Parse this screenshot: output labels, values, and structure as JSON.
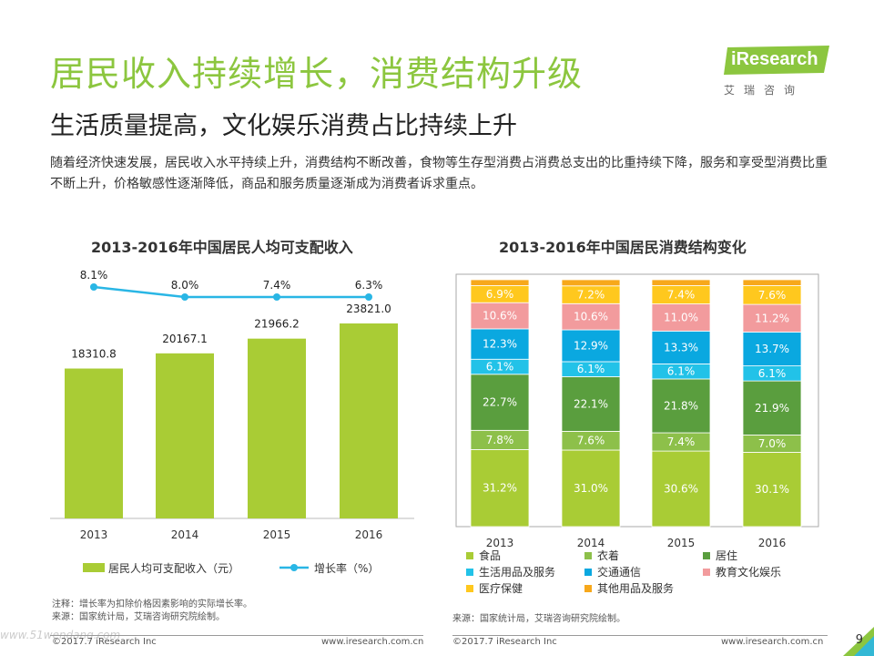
{
  "header": {
    "title": "居民收入持续增长，消费结构升级",
    "subtitle": "生活质量提高，文化娱乐消费占比持续上升",
    "description": "随着经济快速发展，居民收入水平持续上升，消费结构不断改善，食物等生存型消费占消费总支出的比重持续下降，服务和享受型消费比重不断上升，价格敏感性逐渐降低，商品和服务质量逐渐成为消费者诉求重点。"
  },
  "logo": {
    "brand_i": "i",
    "brand_rest": "Research",
    "cn": "艾瑞咨询"
  },
  "colors": {
    "accent_green": "#8cc63f",
    "bar_green": "#a9cc35",
    "line_blue": "#29b6e5"
  },
  "chart_data": [
    {
      "type": "bar",
      "title": "2013-2016年中国居民人均可支配收入",
      "categories": [
        "2013",
        "2014",
        "2015",
        "2016"
      ],
      "series": [
        {
          "name": "居民人均可支配收入（元）",
          "type": "bar",
          "values": [
            18310.8,
            20167.1,
            21966.2,
            23821.0
          ],
          "labels": [
            "18310.8",
            "20167.1",
            "21966.2",
            "23821.0"
          ],
          "color": "#a9cc35"
        },
        {
          "name": "增长率（%）",
          "type": "line",
          "values": [
            8.1,
            8.0,
            7.4,
            6.3
          ],
          "labels": [
            "8.1%",
            "8.0%",
            "7.4%",
            "6.3%"
          ],
          "color": "#29b6e5"
        }
      ],
      "legend": "bottom"
    },
    {
      "type": "bar",
      "stacked": true,
      "title": "2013-2016年中国居民消费结构变化",
      "categories": [
        "2013",
        "2014",
        "2015",
        "2016"
      ],
      "series": [
        {
          "name": "食品",
          "color": "#a9cc35",
          "values": [
            31.2,
            31.0,
            30.6,
            30.1
          ],
          "labels": [
            "31.2%",
            "31.0%",
            "30.6%",
            "30.1%"
          ]
        },
        {
          "name": "衣着",
          "color": "#8dc04a",
          "values": [
            7.8,
            7.6,
            7.4,
            7.0
          ],
          "labels": [
            "7.8%",
            "7.6%",
            "7.4%",
            "7.0%"
          ]
        },
        {
          "name": "居住",
          "color": "#5a9e3e",
          "values": [
            22.7,
            22.1,
            21.8,
            21.9
          ],
          "labels": [
            "22.7%",
            "22.1%",
            "21.8%",
            "21.9%"
          ]
        },
        {
          "name": "生活用品及服务",
          "color": "#22c2e8",
          "values": [
            6.1,
            6.1,
            6.1,
            6.1
          ],
          "labels": [
            "6.1%",
            "6.1%",
            "6.1%",
            "6.1%"
          ]
        },
        {
          "name": "交通通信",
          "color": "#0aa8e0",
          "values": [
            12.3,
            12.9,
            13.3,
            13.7
          ],
          "labels": [
            "12.3%",
            "12.9%",
            "13.3%",
            "13.7%"
          ]
        },
        {
          "name": "教育文化娱乐",
          "color": "#f29b9d",
          "values": [
            10.6,
            10.6,
            11.0,
            11.2
          ],
          "labels": [
            "10.6%",
            "10.6%",
            "11.0%",
            "11.2%"
          ]
        },
        {
          "name": "医疗保健",
          "color": "#ffc81e",
          "values": [
            6.9,
            7.2,
            7.4,
            7.6
          ],
          "labels": [
            "6.9%",
            "7.2%",
            "7.4%",
            "7.6%"
          ]
        },
        {
          "name": "其他用品及服务",
          "color": "#f7a81b",
          "values": [
            2.4,
            2.5,
            2.4,
            2.4
          ],
          "labels": [
            "",
            "",
            "",
            ""
          ]
        }
      ],
      "ylim": [
        0,
        100
      ],
      "legend": "bottom"
    }
  ],
  "notes": {
    "note_left_1": "注释：增长率为扣除价格因素影响的实际增长率。",
    "note_left_2": "来源：国家统计局，艾瑞咨询研究院绘制。",
    "source_right": "来源：国家统计局，艾瑞咨询研究院绘制。"
  },
  "footer": {
    "left_copyright": "©2017.7 iResearch Inc",
    "left_url": "www.iresearch.com.cn",
    "right_copyright": "©2017.7 iResearch Inc",
    "right_url": "www.iresearch.com.cn",
    "page": "9",
    "watermark": "www.51wendang.com"
  }
}
